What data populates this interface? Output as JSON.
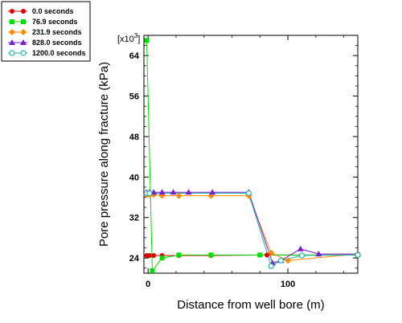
{
  "chart_data": {
    "type": "line",
    "xlabel": "Distance from well bore (m)",
    "ylabel": "Pore pressure along fracture (kPa)",
    "y_multiplier_label": "[x10",
    "y_multiplier_exp": "3",
    "y_multiplier_close": "]",
    "xlim": [
      -3,
      150
    ],
    "ylim": [
      21,
      68
    ],
    "x_ticks": [
      0,
      100
    ],
    "y_ticks": [
      24,
      32,
      40,
      48,
      56,
      64
    ],
    "legend_position": "top-left",
    "series": [
      {
        "name": "0.0 seconds",
        "color": "#e00000",
        "marker": "circle",
        "x": [
          -1,
          1,
          4,
          10,
          22,
          45,
          85,
          150
        ],
        "y": [
          24.5,
          24.5,
          24.5,
          24.5,
          24.5,
          24.5,
          24.6,
          24.6
        ]
      },
      {
        "name": "76.9 seconds",
        "color": "#00e000",
        "marker": "square",
        "x": [
          -1,
          3,
          10,
          22,
          45,
          80,
          150
        ],
        "y": [
          67,
          21.5,
          24,
          24.6,
          24.6,
          24.6,
          24.6
        ]
      },
      {
        "name": "231.9 seconds",
        "color": "#ff8c00",
        "marker": "diamond",
        "x": [
          -1,
          1,
          4,
          10,
          22,
          45,
          72,
          88,
          100,
          150
        ],
        "y": [
          36.5,
          36.5,
          36.5,
          36.3,
          36.3,
          36.3,
          36.3,
          25,
          23.5,
          24.8
        ]
      },
      {
        "name": "828.0 seconds",
        "color": "#7a1fcf",
        "marker": "triangle",
        "x": [
          -1,
          1,
          4,
          10,
          18,
          29,
          46,
          72,
          89,
          95,
          109,
          122,
          150
        ],
        "y": [
          37,
          37,
          37,
          37,
          37,
          37,
          37,
          37,
          23,
          23.5,
          25.8,
          24.8,
          24.8
        ]
      },
      {
        "name": "1200.0 seconds",
        "color": "#20b2aa",
        "marker": "hollow-circle",
        "x": [
          -1,
          1,
          72,
          88,
          95,
          110,
          150
        ],
        "y": [
          36.8,
          36.8,
          36.8,
          22.4,
          23.5,
          24.5,
          24.6
        ]
      }
    ]
  }
}
